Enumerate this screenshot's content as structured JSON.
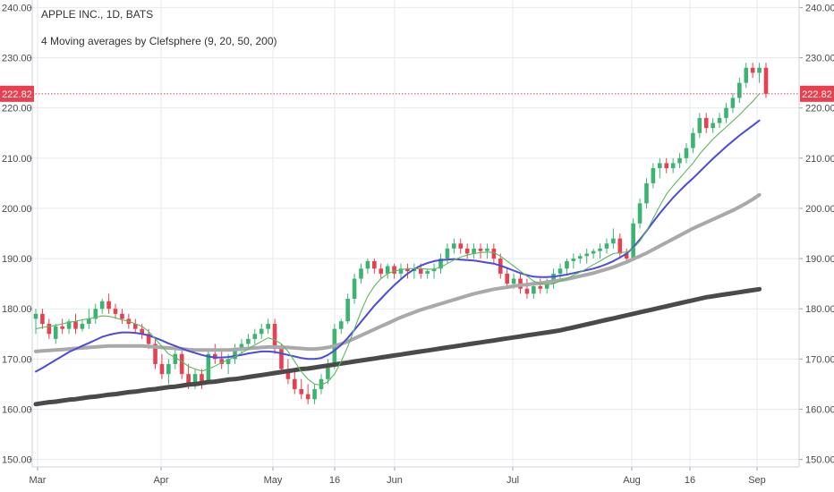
{
  "title": "APPLE INC., 1D, BATS",
  "subtitle": "4 Moving averages by Clefsphere (9, 20, 50, 200)",
  "last_price_label": "222.82",
  "colors": {
    "up": "#3cb371",
    "down": "#e8404f",
    "ma9": "#5cb85c",
    "ma20": "#4b4bdc",
    "ma50": "#a9a9a9",
    "ma200": "#4a4a4a",
    "grid": "#e6eaef",
    "price_line": "#e8404f"
  },
  "chart_data": {
    "type": "line",
    "y_axis_ticks": [
      "150.00",
      "160.00",
      "170.00",
      "180.00",
      "190.00",
      "200.00",
      "210.00",
      "220.00",
      "230.00",
      "240.00"
    ],
    "x_axis_ticks": [
      "Mar",
      "Apr",
      "May",
      "16",
      "Jun",
      "Jul",
      "Aug",
      "16",
      "Sep"
    ],
    "ylim": [
      148.5,
      241.5
    ],
    "last_price": 222.82,
    "grid": true,
    "candles": [
      {
        "o": 178,
        "h": 180,
        "l": 175,
        "c": 179
      },
      {
        "o": 179,
        "h": 180,
        "l": 176,
        "c": 177
      },
      {
        "o": 177,
        "h": 178,
        "l": 174,
        "c": 175
      },
      {
        "o": 174,
        "h": 177,
        "l": 173,
        "c": 176.5
      },
      {
        "o": 176.5,
        "h": 178,
        "l": 175,
        "c": 176
      },
      {
        "o": 176,
        "h": 178,
        "l": 175,
        "c": 177.5
      },
      {
        "o": 177.5,
        "h": 179,
        "l": 175,
        "c": 176
      },
      {
        "o": 176,
        "h": 178,
        "l": 175.5,
        "c": 177
      },
      {
        "o": 177,
        "h": 180,
        "l": 176,
        "c": 178
      },
      {
        "o": 178,
        "h": 181,
        "l": 177,
        "c": 180
      },
      {
        "o": 180,
        "h": 182,
        "l": 179,
        "c": 181.5
      },
      {
        "o": 181.5,
        "h": 183,
        "l": 179,
        "c": 180
      },
      {
        "o": 180,
        "h": 181,
        "l": 178,
        "c": 179
      },
      {
        "o": 179,
        "h": 180,
        "l": 177,
        "c": 178
      },
      {
        "o": 178,
        "h": 179,
        "l": 176,
        "c": 177
      },
      {
        "o": 177,
        "h": 178,
        "l": 175,
        "c": 176
      },
      {
        "o": 176,
        "h": 177,
        "l": 174,
        "c": 175
      },
      {
        "o": 175,
        "h": 176,
        "l": 172,
        "c": 173
      },
      {
        "o": 173,
        "h": 174,
        "l": 168,
        "c": 169
      },
      {
        "o": 169,
        "h": 171,
        "l": 166,
        "c": 167
      },
      {
        "o": 167,
        "h": 170,
        "l": 165,
        "c": 169
      },
      {
        "o": 169,
        "h": 172,
        "l": 168,
        "c": 171
      },
      {
        "o": 171,
        "h": 172,
        "l": 166,
        "c": 167
      },
      {
        "o": 167,
        "h": 169,
        "l": 164,
        "c": 165
      },
      {
        "o": 165,
        "h": 168,
        "l": 164,
        "c": 167
      },
      {
        "o": 167,
        "h": 168,
        "l": 164,
        "c": 165
      },
      {
        "o": 165,
        "h": 172,
        "l": 165,
        "c": 171
      },
      {
        "o": 171,
        "h": 173,
        "l": 169,
        "c": 170
      },
      {
        "o": 170,
        "h": 172,
        "l": 168,
        "c": 169
      },
      {
        "o": 169,
        "h": 171,
        "l": 167,
        "c": 170
      },
      {
        "o": 170,
        "h": 173,
        "l": 169,
        "c": 172
      },
      {
        "o": 172,
        "h": 174,
        "l": 171,
        "c": 173
      },
      {
        "o": 173,
        "h": 175,
        "l": 172,
        "c": 174
      },
      {
        "o": 174,
        "h": 176,
        "l": 173,
        "c": 175
      },
      {
        "o": 175,
        "h": 177,
        "l": 174,
        "c": 176
      },
      {
        "o": 176,
        "h": 178,
        "l": 175,
        "c": 177
      },
      {
        "o": 177,
        "h": 178,
        "l": 171,
        "c": 172
      },
      {
        "o": 172,
        "h": 173,
        "l": 167,
        "c": 168
      },
      {
        "o": 168,
        "h": 170,
        "l": 165,
        "c": 166
      },
      {
        "o": 166,
        "h": 168,
        "l": 163,
        "c": 164
      },
      {
        "o": 164,
        "h": 166,
        "l": 162,
        "c": 163
      },
      {
        "o": 163,
        "h": 165,
        "l": 161,
        "c": 162
      },
      {
        "o": 162,
        "h": 165,
        "l": 161,
        "c": 164
      },
      {
        "o": 164,
        "h": 167,
        "l": 163,
        "c": 166
      },
      {
        "o": 166,
        "h": 170,
        "l": 165,
        "c": 169
      },
      {
        "o": 169,
        "h": 177,
        "l": 168,
        "c": 176
      },
      {
        "o": 176,
        "h": 178,
        "l": 175,
        "c": 177.5
      },
      {
        "o": 177.5,
        "h": 183,
        "l": 177,
        "c": 182
      },
      {
        "o": 182,
        "h": 187,
        "l": 181,
        "c": 186
      },
      {
        "o": 186,
        "h": 189,
        "l": 185,
        "c": 188
      },
      {
        "o": 188,
        "h": 190,
        "l": 187,
        "c": 189.5
      },
      {
        "o": 189.5,
        "h": 190,
        "l": 187,
        "c": 188
      },
      {
        "o": 188,
        "h": 189,
        "l": 186,
        "c": 187
      },
      {
        "o": 187,
        "h": 189,
        "l": 186,
        "c": 188.5
      },
      {
        "o": 188.5,
        "h": 189,
        "l": 186,
        "c": 187
      },
      {
        "o": 187,
        "h": 189,
        "l": 186,
        "c": 188
      },
      {
        "o": 188,
        "h": 189,
        "l": 186,
        "c": 187.5
      },
      {
        "o": 187.5,
        "h": 189,
        "l": 186,
        "c": 188
      },
      {
        "o": 188,
        "h": 189,
        "l": 186,
        "c": 187
      },
      {
        "o": 187,
        "h": 188,
        "l": 186,
        "c": 187.5
      },
      {
        "o": 187.5,
        "h": 189,
        "l": 186,
        "c": 188
      },
      {
        "o": 188,
        "h": 191,
        "l": 187,
        "c": 190
      },
      {
        "o": 190,
        "h": 193,
        "l": 189,
        "c": 192
      },
      {
        "o": 192,
        "h": 194,
        "l": 191,
        "c": 193
      },
      {
        "o": 193,
        "h": 194,
        "l": 191,
        "c": 192
      },
      {
        "o": 192,
        "h": 193,
        "l": 190,
        "c": 191
      },
      {
        "o": 191,
        "h": 193,
        "l": 190,
        "c": 192
      },
      {
        "o": 192,
        "h": 193,
        "l": 190,
        "c": 191.5
      },
      {
        "o": 191.5,
        "h": 193,
        "l": 190,
        "c": 192
      },
      {
        "o": 192,
        "h": 193,
        "l": 189,
        "c": 190
      },
      {
        "o": 190,
        "h": 191,
        "l": 186,
        "c": 187
      },
      {
        "o": 187,
        "h": 188,
        "l": 184,
        "c": 185
      },
      {
        "o": 185,
        "h": 187,
        "l": 184,
        "c": 186
      },
      {
        "o": 186,
        "h": 187,
        "l": 183,
        "c": 184
      },
      {
        "o": 184,
        "h": 186,
        "l": 182,
        "c": 183
      },
      {
        "o": 183,
        "h": 185,
        "l": 182,
        "c": 184.5
      },
      {
        "o": 184.5,
        "h": 186,
        "l": 183,
        "c": 184
      },
      {
        "o": 184,
        "h": 186,
        "l": 183,
        "c": 185
      },
      {
        "o": 185,
        "h": 188,
        "l": 184,
        "c": 187
      },
      {
        "o": 187,
        "h": 189,
        "l": 186,
        "c": 188
      },
      {
        "o": 188,
        "h": 190,
        "l": 187,
        "c": 189.5
      },
      {
        "o": 189.5,
        "h": 191,
        "l": 188,
        "c": 190
      },
      {
        "o": 190,
        "h": 191,
        "l": 189,
        "c": 190.5
      },
      {
        "o": 190.5,
        "h": 192,
        "l": 189,
        "c": 191
      },
      {
        "o": 191,
        "h": 192,
        "l": 190,
        "c": 191.5
      },
      {
        "o": 191.5,
        "h": 193,
        "l": 190,
        "c": 192
      },
      {
        "o": 192,
        "h": 194,
        "l": 191,
        "c": 193
      },
      {
        "o": 193,
        "h": 196,
        "l": 192,
        "c": 194
      },
      {
        "o": 194,
        "h": 195,
        "l": 190,
        "c": 191
      },
      {
        "o": 191,
        "h": 192,
        "l": 189,
        "c": 190
      },
      {
        "o": 190,
        "h": 198,
        "l": 190,
        "c": 197
      },
      {
        "o": 197,
        "h": 202,
        "l": 196,
        "c": 201
      },
      {
        "o": 201,
        "h": 206,
        "l": 200,
        "c": 205
      },
      {
        "o": 205,
        "h": 209,
        "l": 204,
        "c": 208
      },
      {
        "o": 208,
        "h": 210,
        "l": 206,
        "c": 209
      },
      {
        "o": 209,
        "h": 210,
        "l": 207,
        "c": 208
      },
      {
        "o": 208,
        "h": 210,
        "l": 207,
        "c": 209
      },
      {
        "o": 209,
        "h": 211,
        "l": 208,
        "c": 210
      },
      {
        "o": 210,
        "h": 213,
        "l": 209,
        "c": 212
      },
      {
        "o": 212,
        "h": 216,
        "l": 211,
        "c": 215
      },
      {
        "o": 215,
        "h": 219,
        "l": 214,
        "c": 218
      },
      {
        "o": 218,
        "h": 219,
        "l": 215,
        "c": 216
      },
      {
        "o": 216,
        "h": 218,
        "l": 215,
        "c": 217
      },
      {
        "o": 217,
        "h": 219,
        "l": 216,
        "c": 218
      },
      {
        "o": 218,
        "h": 221,
        "l": 217,
        "c": 220
      },
      {
        "o": 220,
        "h": 223,
        "l": 219,
        "c": 222
      },
      {
        "o": 222,
        "h": 226,
        "l": 221,
        "c": 225
      },
      {
        "o": 225,
        "h": 229,
        "l": 224,
        "c": 228
      },
      {
        "o": 228,
        "h": 229,
        "l": 226,
        "c": 227
      },
      {
        "o": 227,
        "h": 229,
        "l": 225,
        "c": 228
      },
      {
        "o": 228,
        "h": 229,
        "l": 222,
        "c": 222.82
      }
    ],
    "series": [
      {
        "key": "ma9",
        "values": [
          176,
          176.3,
          176.5,
          176.7,
          177,
          177.3,
          177.5,
          177.8,
          178,
          178.3,
          178.6,
          178.5,
          178.2,
          177.8,
          177.5,
          177,
          176.5,
          175.5,
          174,
          172.5,
          171,
          170.3,
          169.5,
          168.5,
          168,
          167.6,
          168,
          168.6,
          169.3,
          169.8,
          170.5,
          171.2,
          172,
          172.8,
          173.5,
          174.2,
          173.8,
          173,
          171.5,
          169.5,
          167.5,
          166,
          165,
          164.8,
          165.5,
          167,
          169.5,
          172.5,
          176,
          179.5,
          182.5,
          184.5,
          186,
          187,
          187.5,
          187.8,
          188,
          188,
          188,
          187.9,
          187.9,
          188.3,
          189,
          189.7,
          190.3,
          190.7,
          191,
          191.2,
          191.3,
          191.2,
          190.5,
          189.5,
          188.5,
          187.5,
          186.5,
          185.5,
          185,
          184.8,
          185,
          185.5,
          186,
          186.7,
          187.3,
          188,
          188.8,
          189.5,
          190.3,
          191,
          191.2,
          191.3,
          192,
          193.5,
          195.5,
          198,
          200.5,
          202.8,
          204.5,
          206,
          207.5,
          209,
          210.8,
          212.3,
          213.8,
          215,
          216.2,
          217.4,
          218.6,
          220,
          221.3,
          222.82
        ]
      },
      {
        "key": "ma20",
        "values": [
          167.5,
          168.2,
          169,
          169.8,
          170.6,
          171.4,
          172,
          172.6,
          173.2,
          173.8,
          174.4,
          174.8,
          175.1,
          175.3,
          175.3,
          175.2,
          175,
          174.7,
          174.2,
          173.7,
          173.1,
          172.6,
          172.1,
          171.6,
          171.2,
          170.8,
          170.5,
          170.3,
          170.3,
          170.4,
          170.6,
          170.8,
          171.1,
          171.3,
          171.5,
          171.5,
          171.4,
          171.1,
          170.8,
          170.5,
          170.2,
          170,
          170,
          170.2,
          170.8,
          171.7,
          172.8,
          174.2,
          175.8,
          177.4,
          179,
          180.6,
          182,
          183.4,
          184.7,
          185.9,
          187,
          187.9,
          188.6,
          189.1,
          189.5,
          189.7,
          189.8,
          189.9,
          189.8,
          189.7,
          189.6,
          189.4,
          189.2,
          189,
          188.6,
          188.1,
          187.6,
          187.1,
          186.7,
          186.4,
          186.3,
          186.3,
          186.4,
          186.6,
          186.8,
          187.1,
          187.4,
          187.7,
          188,
          188.4,
          188.9,
          189.5,
          190.2,
          191,
          192.2,
          193.8,
          195.5,
          197.3,
          199,
          200.6,
          202.1,
          203.5,
          204.8,
          206,
          207.3,
          208.6,
          209.9,
          211.1,
          212.3,
          213.4,
          214.5,
          215.5,
          216.5,
          217.5
        ]
      },
      {
        "key": "ma50",
        "values": [
          171.5,
          171.6,
          171.7,
          171.8,
          171.9,
          172,
          172.1,
          172.2,
          172.3,
          172.4,
          172.5,
          172.6,
          172.6,
          172.6,
          172.6,
          172.6,
          172.6,
          172.5,
          172.4,
          172.3,
          172.2,
          172.1,
          172,
          171.9,
          171.8,
          171.8,
          171.8,
          171.8,
          171.8,
          171.8,
          171.9,
          172,
          172.1,
          172.2,
          172.3,
          172.4,
          172.4,
          172.3,
          172.3,
          172.2,
          172.1,
          172,
          172,
          172.1,
          172.3,
          172.6,
          173,
          173.5,
          174.1,
          174.7,
          175.3,
          175.9,
          176.5,
          177.1,
          177.7,
          178.3,
          178.8,
          179.3,
          179.8,
          180.2,
          180.6,
          181,
          181.4,
          181.8,
          182.2,
          182.6,
          183,
          183.3,
          183.6,
          183.9,
          184.1,
          184.3,
          184.5,
          184.7,
          184.8,
          185,
          185.1,
          185.3,
          185.5,
          185.7,
          185.9,
          186.2,
          186.5,
          186.8,
          187.1,
          187.5,
          187.9,
          188.3,
          188.8,
          189.3,
          189.9,
          190.5,
          191.1,
          191.8,
          192.5,
          193.2,
          193.9,
          194.6,
          195.3,
          196,
          196.6,
          197.2,
          197.8,
          198.4,
          199,
          199.6,
          200.3,
          201,
          201.8,
          202.7
        ]
      },
      {
        "key": "ma200",
        "values": [
          161,
          161.2,
          161.4,
          161.5,
          161.7,
          161.9,
          162,
          162.2,
          162.4,
          162.5,
          162.7,
          162.9,
          163,
          163.2,
          163.4,
          163.5,
          163.7,
          163.9,
          164,
          164.2,
          164.4,
          164.5,
          164.7,
          164.9,
          165,
          165.2,
          165.4,
          165.5,
          165.7,
          165.9,
          166,
          166.2,
          166.4,
          166.6,
          166.8,
          167,
          167.2,
          167.4,
          167.6,
          167.8,
          168,
          168.1,
          168.3,
          168.5,
          168.7,
          168.9,
          169.1,
          169.3,
          169.5,
          169.7,
          169.9,
          170.1,
          170.3,
          170.5,
          170.7,
          170.9,
          171.1,
          171.3,
          171.5,
          171.7,
          171.9,
          172.1,
          172.3,
          172.5,
          172.7,
          172.9,
          173.1,
          173.3,
          173.5,
          173.7,
          173.9,
          174.1,
          174.3,
          174.5,
          174.7,
          174.9,
          175.1,
          175.3,
          175.5,
          175.7,
          176,
          176.3,
          176.6,
          176.9,
          177.2,
          177.5,
          177.8,
          178.1,
          178.4,
          178.7,
          179,
          179.3,
          179.6,
          179.9,
          180.2,
          180.5,
          180.8,
          181.1,
          181.4,
          181.7,
          182,
          182.3,
          182.5,
          182.7,
          182.9,
          183.1,
          183.3,
          183.5,
          183.7,
          183.9
        ]
      }
    ]
  }
}
